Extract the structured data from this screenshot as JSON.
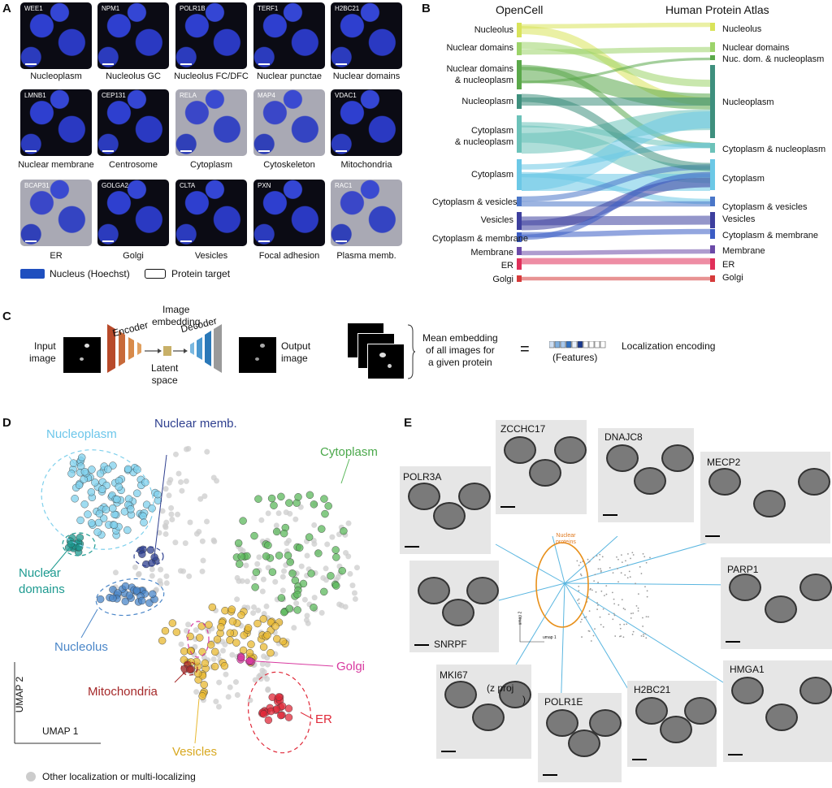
{
  "panels": {
    "a": "A",
    "b": "B",
    "c": "C",
    "d": "D",
    "e": "E"
  },
  "panel_a": {
    "tiles": [
      {
        "protein": "WEE1",
        "loc": "Nucleoplasm"
      },
      {
        "protein": "NPM1",
        "loc": "Nucleolus GC"
      },
      {
        "protein": "POLR1B",
        "loc": "Nucleolus FC/DFC"
      },
      {
        "protein": "TERF1",
        "loc": "Nuclear punctae"
      },
      {
        "protein": "H2BC21",
        "loc": "Nuclear domains"
      },
      {
        "protein": "LMNB1",
        "loc": "Nuclear membrane"
      },
      {
        "protein": "CEP131",
        "loc": "Centrosome"
      },
      {
        "protein": "RELA",
        "loc": "Cytoplasm"
      },
      {
        "protein": "MAP4",
        "loc": "Cytoskeleton"
      },
      {
        "protein": "VDAC1",
        "loc": "Mitochondria"
      },
      {
        "protein": "BCAP31",
        "loc": "ER"
      },
      {
        "protein": "GOLGA2",
        "loc": "Golgi"
      },
      {
        "protein": "CLTA",
        "loc": "Vesicles"
      },
      {
        "protein": "PXN",
        "loc": "Focal adhesion"
      },
      {
        "protein": "RAC1",
        "loc": "Plasma memb."
      }
    ],
    "legend_nucleus": "Nucleus (Hoechst)",
    "legend_target": "Protein target",
    "nucleus_color": "#1f4fbf"
  },
  "panel_b": {
    "left_title": "OpenCell",
    "right_title": "Human Protein Atlas",
    "left": [
      "Nucleolus",
      "Nuclear domains",
      "Nuclear domains\n& nucleoplasm",
      "Nucleoplasm",
      "Cytoplasm\n& nucleoplasm",
      "Cytoplasm",
      "Cytoplasm & vesicles",
      "Vesicles",
      "Cytoplasm & membrane",
      "Membrane",
      "ER",
      "Golgi"
    ],
    "right": [
      "Nucleolus",
      "Nuclear domains",
      "Nuc. dom. & nucleoplasm",
      "Nucleoplasm",
      "Cytoplasm & nucleoplasm",
      "Cytoplasm",
      "Cytoplasm & vesicles",
      "Vesicles",
      "Cytoplasm & membrane",
      "Membrane",
      "ER",
      "Golgi"
    ],
    "colors": [
      "#d9e35a",
      "#9cd36a",
      "#5aa84a",
      "#3e8f7d",
      "#6cc2b9",
      "#6cc8e6",
      "#4a76c8",
      "#3d3f9e",
      "#3b5cc4",
      "#6b4aa8",
      "#e0305a",
      "#d63a3a"
    ]
  },
  "panel_c": {
    "input_label": "Input\nimage",
    "encoder": "Encoder",
    "embedding": "Image\nembedding",
    "latent": "Latent\nspace",
    "decoder": "Decoder",
    "output_label": "Output\nimage",
    "mean_text": "Mean embedding\nof all images for\na given protein",
    "equals": "=",
    "features": "(Features)",
    "loc_encoding": "Localization encoding"
  },
  "panel_d": {
    "labels": {
      "nucleoplasm": "Nucleoplasm",
      "nuclear_memb": "Nuclear memb.",
      "cytoplasm": "Cytoplasm",
      "nuclear_domains": "Nuclear\ndomains",
      "nucleolus": "Nucleolus",
      "golgi": "Golgi",
      "mitochondria": "Mitochondria",
      "er": "ER",
      "vesicles": "Vesicles"
    },
    "axis_y": "UMAP 2",
    "axis_x": "UMAP 1",
    "legend_other": "Other localization or multi-localizing",
    "colors": {
      "nucleoplasm": "#7fd0ec",
      "nuclear_memb": "#2e3f8f",
      "cytoplasm": "#5cb85c",
      "nuclear_domains": "#1d9a90",
      "nucleolus": "#4a86c8",
      "golgi": "#d83aa0",
      "mitochondria": "#a5292a",
      "er": "#e02a3a",
      "vesicles": "#e8b830",
      "other": "#cccccc"
    }
  },
  "panel_e": {
    "cells": [
      "POLR3A",
      "ZCCHC17",
      "DNAJC8",
      "MECP2",
      "SNRPF",
      "PARP1",
      "MKI67",
      "(z proj",
      ")",
      "POLR1E",
      "H2BC21",
      "HMGA1"
    ],
    "center_label": "Nuclear\nproteins",
    "axis_small_y": "umap 2",
    "axis_small_x": "umap 1"
  }
}
